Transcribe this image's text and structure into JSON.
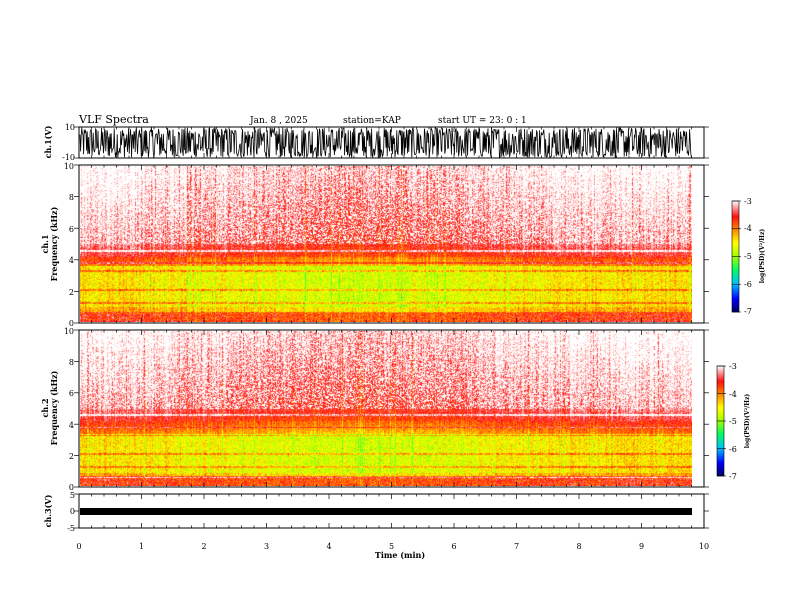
{
  "header": {
    "title": "VLF Spectra",
    "date": "Jan. 8 , 2025",
    "station": "station=KAP",
    "start_ut": "start UT = 23: 0 : 1"
  },
  "chart_data": [
    {
      "type": "line",
      "panel": "ch1-waveform",
      "ylabel": "ch.1(V)",
      "ylim": [
        -10,
        10
      ],
      "yticks": [
        "10",
        "-10"
      ],
      "xlim": [
        0,
        10
      ],
      "line_color": "#000000"
    },
    {
      "type": "heatmap",
      "panel": "ch1-spectrogram",
      "ylabel_top": "ch.1",
      "ylabel": "Frequency (kHz)",
      "ylim": [
        0,
        10
      ],
      "yticks": [
        "0",
        "2",
        "4",
        "6",
        "8",
        "10"
      ],
      "xlim": [
        0,
        10
      ],
      "colorbar": {
        "label": "log(PSD)(V²/Hz)",
        "range": [
          -7,
          -3
        ],
        "ticks": [
          "-3",
          "-4",
          "-5",
          "-6",
          "-7"
        ]
      }
    },
    {
      "type": "heatmap",
      "panel": "ch2-spectrogram",
      "ylabel_top": "ch.2",
      "ylabel": "Frequency (kHz)",
      "ylim": [
        0,
        10
      ],
      "yticks": [
        "0",
        "2",
        "4",
        "6",
        "8",
        "10"
      ],
      "xlim": [
        0,
        10
      ],
      "colorbar": {
        "label": "log(PSD)(V²/Hz)",
        "range": [
          -7,
          -3
        ],
        "ticks": [
          "-3",
          "-4",
          "-5",
          "-6",
          "-7"
        ]
      }
    },
    {
      "type": "line",
      "panel": "ch3-waveform",
      "ylabel": "ch.3(V)",
      "ylim": [
        -5,
        5
      ],
      "yticks": [
        "5",
        "0",
        "-5"
      ],
      "xlabel": "Time (min)",
      "xlim": [
        0,
        10
      ],
      "xticks": [
        "0",
        "1",
        "2",
        "3",
        "4",
        "5",
        "6",
        "7",
        "8",
        "9",
        "10"
      ],
      "data_end_min": 9.8
    }
  ],
  "colors": {
    "cmap": [
      "#000080",
      "#0000ff",
      "#00c0ff",
      "#00ff80",
      "#40ff00",
      "#c0ff00",
      "#ffff00",
      "#ffa000",
      "#ff2000",
      "#ff3030",
      "#ffb0b0",
      "#ffffff"
    ]
  }
}
